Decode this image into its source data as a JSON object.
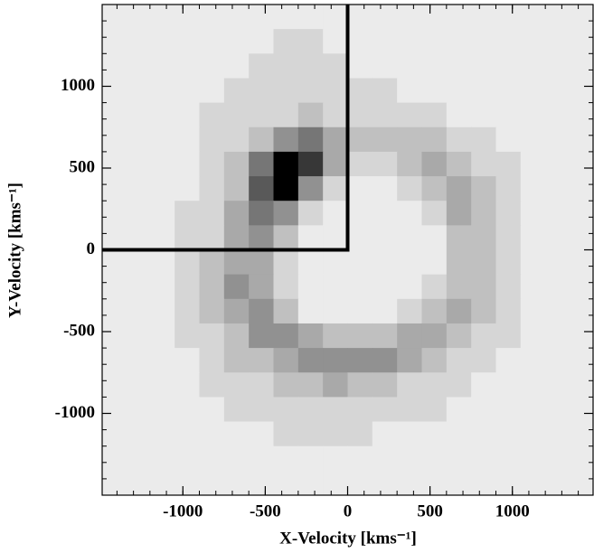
{
  "chart_data": {
    "type": "heatmap",
    "xlabel": "X-Velocity [kms⁻¹]",
    "ylabel": "Y-Velocity [kms⁻¹]",
    "colormap": "gray_r",
    "xlim": [
      -1490,
      1490
    ],
    "ylim": [
      -1500,
      1500
    ],
    "xticks": [
      -1000,
      -500,
      0,
      500,
      1000
    ],
    "yticks": [
      -1000,
      -500,
      0,
      500,
      1000
    ],
    "x": [
      -1425,
      -1275,
      -1125,
      -975,
      -825,
      -675,
      -525,
      -375,
      -225,
      -75,
      75,
      225,
      375,
      525,
      675,
      825,
      975,
      1125,
      1275,
      1425
    ],
    "y": [
      1425,
      1275,
      1125,
      975,
      825,
      675,
      525,
      375,
      225,
      75,
      -75,
      -225,
      -375,
      -525,
      -675,
      -825,
      -975,
      -1125,
      -1275,
      -1425
    ],
    "values": [
      [
        1,
        1,
        1,
        1,
        1,
        1,
        1,
        1,
        1,
        1,
        1,
        1,
        1,
        1,
        1,
        1,
        1,
        1,
        1,
        1
      ],
      [
        1,
        1,
        1,
        1,
        1,
        1,
        1,
        2,
        2,
        1,
        1,
        1,
        1,
        1,
        1,
        1,
        1,
        1,
        1,
        1
      ],
      [
        1,
        1,
        1,
        1,
        1,
        1,
        2,
        2,
        2,
        2,
        1,
        1,
        1,
        1,
        1,
        1,
        1,
        1,
        1,
        1
      ],
      [
        1,
        1,
        1,
        1,
        1,
        2,
        2,
        2,
        2,
        2,
        2,
        2,
        1,
        1,
        1,
        1,
        1,
        1,
        1,
        1
      ],
      [
        1,
        1,
        1,
        1,
        2,
        2,
        2,
        2,
        3,
        2,
        2,
        2,
        2,
        2,
        1,
        1,
        1,
        1,
        1,
        1
      ],
      [
        1,
        1,
        1,
        1,
        2,
        2,
        3,
        5,
        6,
        4,
        3,
        3,
        3,
        3,
        2,
        2,
        1,
        1,
        1,
        1
      ],
      [
        1,
        1,
        1,
        1,
        2,
        3,
        6,
        9,
        8,
        4,
        2,
        2,
        3,
        4,
        3,
        2,
        2,
        1,
        1,
        1
      ],
      [
        1,
        1,
        1,
        1,
        2,
        3,
        7,
        9,
        5,
        2,
        1,
        1,
        2,
        3,
        4,
        3,
        2,
        1,
        1,
        1
      ],
      [
        1,
        1,
        1,
        2,
        2,
        4,
        6,
        5,
        2,
        1,
        1,
        1,
        1,
        2,
        4,
        3,
        2,
        1,
        1,
        1
      ],
      [
        1,
        1,
        1,
        2,
        2,
        4,
        5,
        3,
        1,
        1,
        1,
        1,
        1,
        1,
        3,
        3,
        2,
        1,
        1,
        1
      ],
      [
        1,
        1,
        1,
        2,
        3,
        4,
        4,
        2,
        1,
        1,
        1,
        1,
        1,
        1,
        3,
        3,
        2,
        1,
        1,
        1
      ],
      [
        1,
        1,
        1,
        2,
        3,
        5,
        4,
        2,
        1,
        1,
        1,
        1,
        1,
        2,
        3,
        3,
        2,
        1,
        1,
        1
      ],
      [
        1,
        1,
        1,
        2,
        3,
        4,
        5,
        3,
        1,
        1,
        1,
        1,
        2,
        3,
        4,
        3,
        2,
        1,
        1,
        1
      ],
      [
        1,
        1,
        1,
        2,
        2,
        3,
        5,
        5,
        4,
        3,
        3,
        3,
        4,
        4,
        3,
        2,
        2,
        1,
        1,
        1
      ],
      [
        1,
        1,
        1,
        1,
        2,
        3,
        3,
        4,
        5,
        5,
        5,
        5,
        4,
        3,
        2,
        2,
        1,
        1,
        1,
        1
      ],
      [
        1,
        1,
        1,
        1,
        2,
        2,
        2,
        3,
        3,
        4,
        3,
        3,
        2,
        2,
        2,
        1,
        1,
        1,
        1,
        1
      ],
      [
        1,
        1,
        1,
        1,
        1,
        2,
        2,
        2,
        2,
        2,
        2,
        2,
        2,
        2,
        1,
        1,
        1,
        1,
        1,
        1
      ],
      [
        1,
        1,
        1,
        1,
        1,
        1,
        1,
        2,
        2,
        2,
        2,
        1,
        1,
        1,
        1,
        1,
        1,
        1,
        1,
        1
      ],
      [
        1,
        1,
        1,
        1,
        1,
        1,
        1,
        1,
        1,
        1,
        1,
        1,
        1,
        1,
        1,
        1,
        1,
        1,
        1,
        1
      ],
      [
        1,
        1,
        1,
        1,
        1,
        1,
        1,
        1,
        1,
        1,
        1,
        1,
        1,
        1,
        1,
        1,
        1,
        1,
        1,
        1
      ]
    ]
  }
}
